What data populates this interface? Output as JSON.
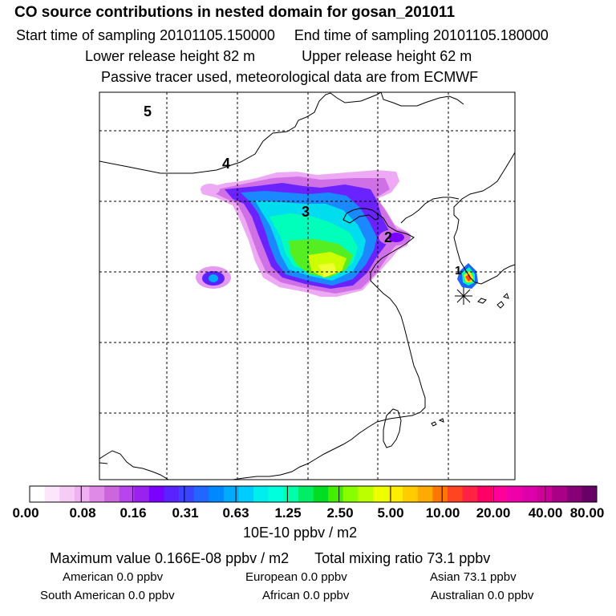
{
  "header": {
    "title": "CO  source contributions in nested domain for gosan_201011",
    "start_label": "Start time of sampling 20101105.150000",
    "end_label": "End time of sampling 20101105.180000",
    "lower_label": "Lower release height   82 m",
    "upper_label": "Upper release height   62 m",
    "tracer_note": "Passive tracer used, meteorological data are from ECMWF"
  },
  "map": {
    "region_labels": [
      "5",
      "4",
      "3",
      "2",
      "1"
    ]
  },
  "colorbar": {
    "ticks": [
      "0.00",
      "0.08",
      "0.16",
      "0.31",
      "0.63",
      "1.25",
      "2.50",
      "5.00",
      "10.00",
      "20.00",
      "40.00",
      "80.00"
    ],
    "unit": "10E-10 ppbv / m2",
    "colors": [
      "#ffffff",
      "#fbe6fb",
      "#f6ccf6",
      "#f0b0f2",
      "#e08ae8",
      "#cc66dd",
      "#b844ee",
      "#9a22f0",
      "#7a00ff",
      "#5a22ff",
      "#3a44ff",
      "#2266ff",
      "#0088ff",
      "#00aaff",
      "#00ccff",
      "#00eeee",
      "#00ffdd",
      "#00ffaa",
      "#00ee66",
      "#00dd22",
      "#44ee00",
      "#88ff00",
      "#bbff00",
      "#eeff00",
      "#ffee00",
      "#ffcc00",
      "#ffaa00",
      "#ff7700",
      "#ff4422",
      "#ff2244",
      "#ff0066",
      "#ff0099",
      "#ee00aa",
      "#dd00aa",
      "#cc0099",
      "#aa0088",
      "#880077",
      "#660066"
    ]
  },
  "stats": {
    "max_line": "Maximum value  0.166E-08 ppbv / m2",
    "total_line": "Total mixing ratio       73.1 ppbv",
    "american": "American         0.0 ppbv",
    "european": "European         0.0 ppbv",
    "asian": "Asian       73.1 ppbv",
    "south_american": "South American          0.0 ppbv",
    "african": "African          0.0 ppbv",
    "australian": "Australian          0.0 ppbv"
  }
}
